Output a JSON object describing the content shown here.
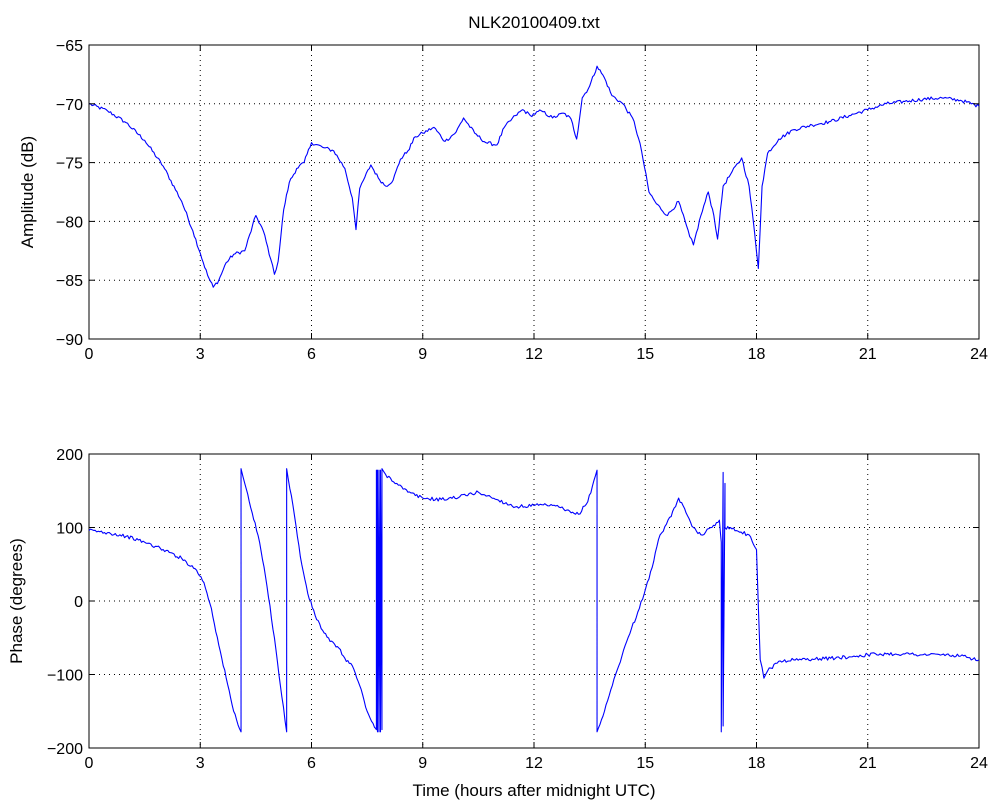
{
  "chart_data": [
    {
      "type": "line",
      "title": "NLK20100409.txt",
      "xlabel": "",
      "ylabel": "Amplitude (dB)",
      "xlim": [
        0,
        24
      ],
      "ylim": [
        -90,
        -65
      ],
      "xticks": [
        0,
        3,
        6,
        9,
        12,
        15,
        18,
        21,
        24
      ],
      "yticks": [
        -90,
        -85,
        -80,
        -75,
        -70,
        -65
      ],
      "grid": true,
      "color": "#0000ff",
      "series": [
        {
          "x": [
            0,
            0.5,
            1.0,
            1.5,
            2.0,
            2.5,
            2.8,
            3.0,
            3.2,
            3.35,
            3.5,
            3.7,
            3.9,
            4.2,
            4.5,
            4.7,
            4.9,
            5.0,
            5.1,
            5.25,
            5.4,
            5.6,
            5.8,
            6.0,
            6.3,
            6.6,
            6.9,
            7.1,
            7.2,
            7.3,
            7.4,
            7.6,
            7.8,
            8.0,
            8.2,
            8.4,
            8.6,
            8.8,
            9.0,
            9.3,
            9.6,
            9.9,
            10.1,
            10.4,
            10.7,
            11.0,
            11.2,
            11.5,
            11.7,
            11.9,
            12.2,
            12.5,
            12.8,
            13.0,
            13.15,
            13.3,
            13.5,
            13.7,
            13.9,
            14.1,
            14.4,
            14.7,
            14.9,
            15.1,
            15.3,
            15.6,
            15.9,
            16.2,
            16.3,
            16.5,
            16.7,
            16.85,
            16.95,
            17.1,
            17.3,
            17.6,
            17.8,
            17.95,
            18.05,
            18.15,
            18.3,
            18.6,
            19.0,
            19.5,
            20.0,
            20.5,
            21.0,
            21.5,
            22.0,
            22.5,
            23.0,
            23.5,
            24.0
          ],
          "y": [
            -70,
            -70.6,
            -71.6,
            -73.1,
            -75.3,
            -78.3,
            -80.8,
            -82.7,
            -84.6,
            -85.6,
            -85.0,
            -83.5,
            -82.8,
            -82.5,
            -79.5,
            -80.8,
            -83.2,
            -84.5,
            -83.4,
            -79.0,
            -76.7,
            -75.5,
            -75.0,
            -73.3,
            -73.7,
            -74.0,
            -75.5,
            -78.0,
            -80.7,
            -77.2,
            -76.5,
            -75.2,
            -76.3,
            -77.0,
            -76.5,
            -74.7,
            -74.0,
            -72.8,
            -72.5,
            -72.0,
            -73.2,
            -72.4,
            -71.2,
            -72.5,
            -73.3,
            -73.5,
            -72.0,
            -71.0,
            -70.5,
            -71.0,
            -70.6,
            -71.2,
            -70.8,
            -71.3,
            -73.0,
            -69.5,
            -68.5,
            -66.8,
            -67.8,
            -69.3,
            -70.0,
            -71.5,
            -74.0,
            -77.5,
            -78.5,
            -79.5,
            -78.3,
            -81.3,
            -82.0,
            -79.5,
            -77.5,
            -79.5,
            -81.5,
            -77.0,
            -76.0,
            -74.6,
            -77.0,
            -81.0,
            -84.0,
            -77.0,
            -74.2,
            -73.0,
            -72.2,
            -71.8,
            -71.5,
            -71.0,
            -70.5,
            -70.0,
            -69.8,
            -69.6,
            -69.5,
            -69.7,
            -70.2
          ]
        }
      ]
    },
    {
      "type": "line",
      "title": "",
      "xlabel": "Time (hours after midnight UTC)",
      "ylabel": "Phase (degrees)",
      "xlim": [
        0,
        24
      ],
      "ylim": [
        -200,
        200
      ],
      "xticks": [
        0,
        3,
        6,
        9,
        12,
        15,
        18,
        21,
        24
      ],
      "yticks": [
        -200,
        -100,
        0,
        100,
        200
      ],
      "grid": true,
      "color": "#0000ff",
      "series": [
        {
          "x": [
            0,
            0.5,
            1.0,
            1.5,
            2.0,
            2.5,
            2.9,
            3.1,
            3.3,
            3.5,
            3.7,
            3.9,
            4.1,
            4.1,
            4.2,
            4.4,
            4.6,
            4.8,
            5.0,
            5.2,
            5.33,
            5.33,
            5.5,
            5.7,
            5.9,
            6.1,
            6.3,
            6.5,
            6.7,
            6.9,
            7.1,
            7.3,
            7.5,
            7.7,
            7.75,
            7.75,
            7.78,
            7.78,
            7.82,
            7.82,
            7.86,
            7.86,
            7.9,
            7.9,
            8.0,
            8.3,
            8.6,
            9.0,
            9.5,
            10.0,
            10.5,
            11.0,
            11.5,
            12.0,
            12.5,
            12.8,
            13.0,
            13.2,
            13.45,
            13.7,
            13.7,
            13.9,
            14.2,
            14.5,
            14.8,
            15.1,
            15.4,
            15.7,
            15.9,
            16.1,
            16.3,
            16.5,
            16.8,
            17.0,
            17.05,
            17.05,
            17.1,
            17.1,
            17.15,
            17.15,
            17.3,
            17.5,
            17.8,
            18.0,
            18.1,
            18.2,
            18.3,
            18.6,
            19.0,
            19.5,
            20.0,
            20.5,
            21.0,
            21.5,
            22.0,
            22.5,
            23.0,
            23.5,
            24.0
          ],
          "y": [
            96,
            93,
            88,
            80,
            70,
            58,
            42,
            25,
            -10,
            -60,
            -105,
            -150,
            -178,
            180,
            160,
            120,
            80,
            20,
            -50,
            -130,
            -178,
            180,
            130,
            60,
            10,
            -20,
            -40,
            -55,
            -62,
            -78,
            -88,
            -115,
            -150,
            -172,
            -175,
            178,
            -178,
            178,
            -178,
            178,
            -178,
            178,
            -175,
            180,
            172,
            160,
            148,
            140,
            138,
            142,
            148,
            138,
            128,
            130,
            130,
            125,
            120,
            118,
            135,
            178,
            -178,
            -150,
            -100,
            -55,
            -15,
            30,
            90,
            115,
            140,
            120,
            100,
            90,
            100,
            110,
            80,
            -178,
            175,
            -170,
            160,
            100,
            100,
            95,
            90,
            70,
            -80,
            -105,
            -95,
            -82,
            -80,
            -79,
            -78,
            -76,
            -73,
            -72,
            -72,
            -73,
            -73,
            -75,
            -80
          ]
        }
      ]
    }
  ]
}
